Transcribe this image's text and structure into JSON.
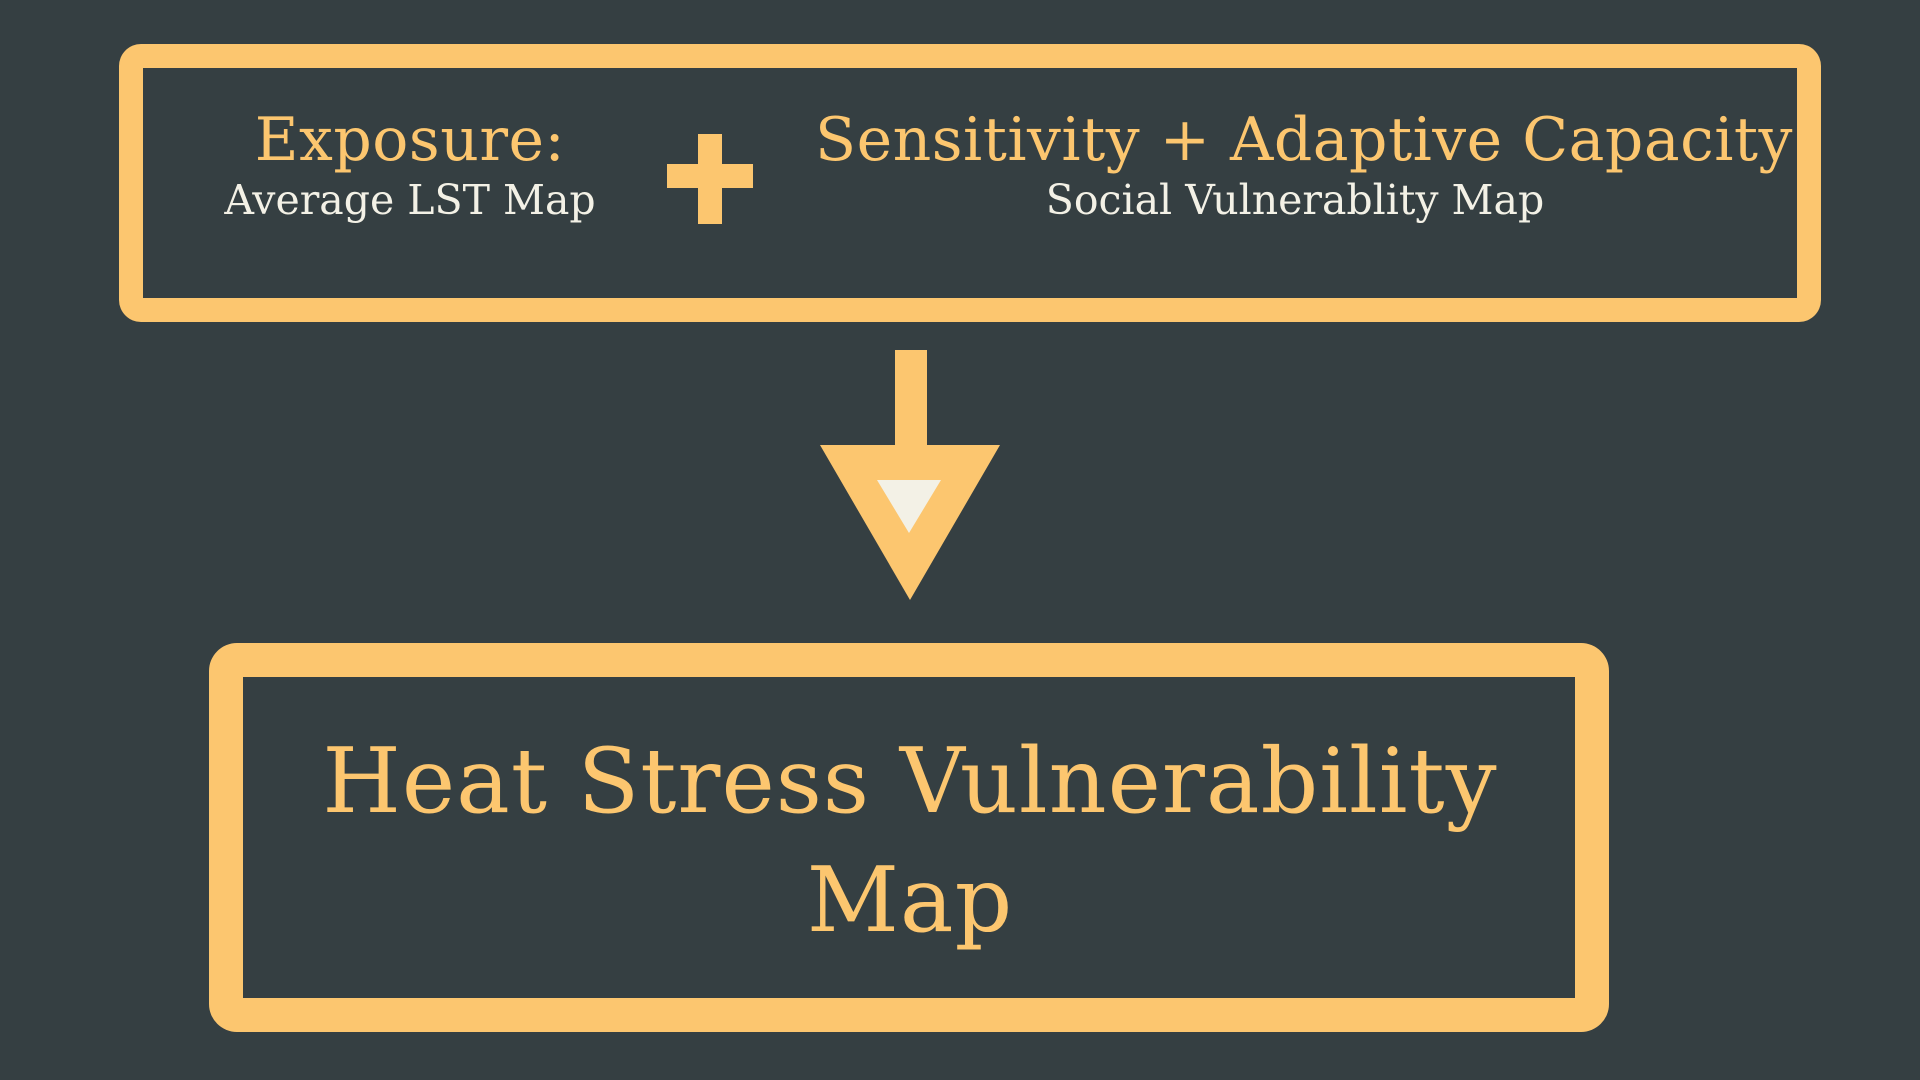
{
  "colors": {
    "background": "#353f42",
    "accent": "#fcc66f",
    "text_light": "#f3f1e6",
    "arrow_inner": "#f3f1e6"
  },
  "inputs": {
    "exposure": {
      "heading": "Exposure:",
      "subtitle": "Average LST Map"
    },
    "operator": "plus-icon",
    "sensitivity": {
      "heading": "Sensitivity + Adaptive Capacity:",
      "subtitle": "Social Vulnerablity Map"
    }
  },
  "flow_arrow": "arrow-down-icon",
  "result": {
    "title_line1": "Heat Stress Vulnerability",
    "title_line2": "Map"
  }
}
